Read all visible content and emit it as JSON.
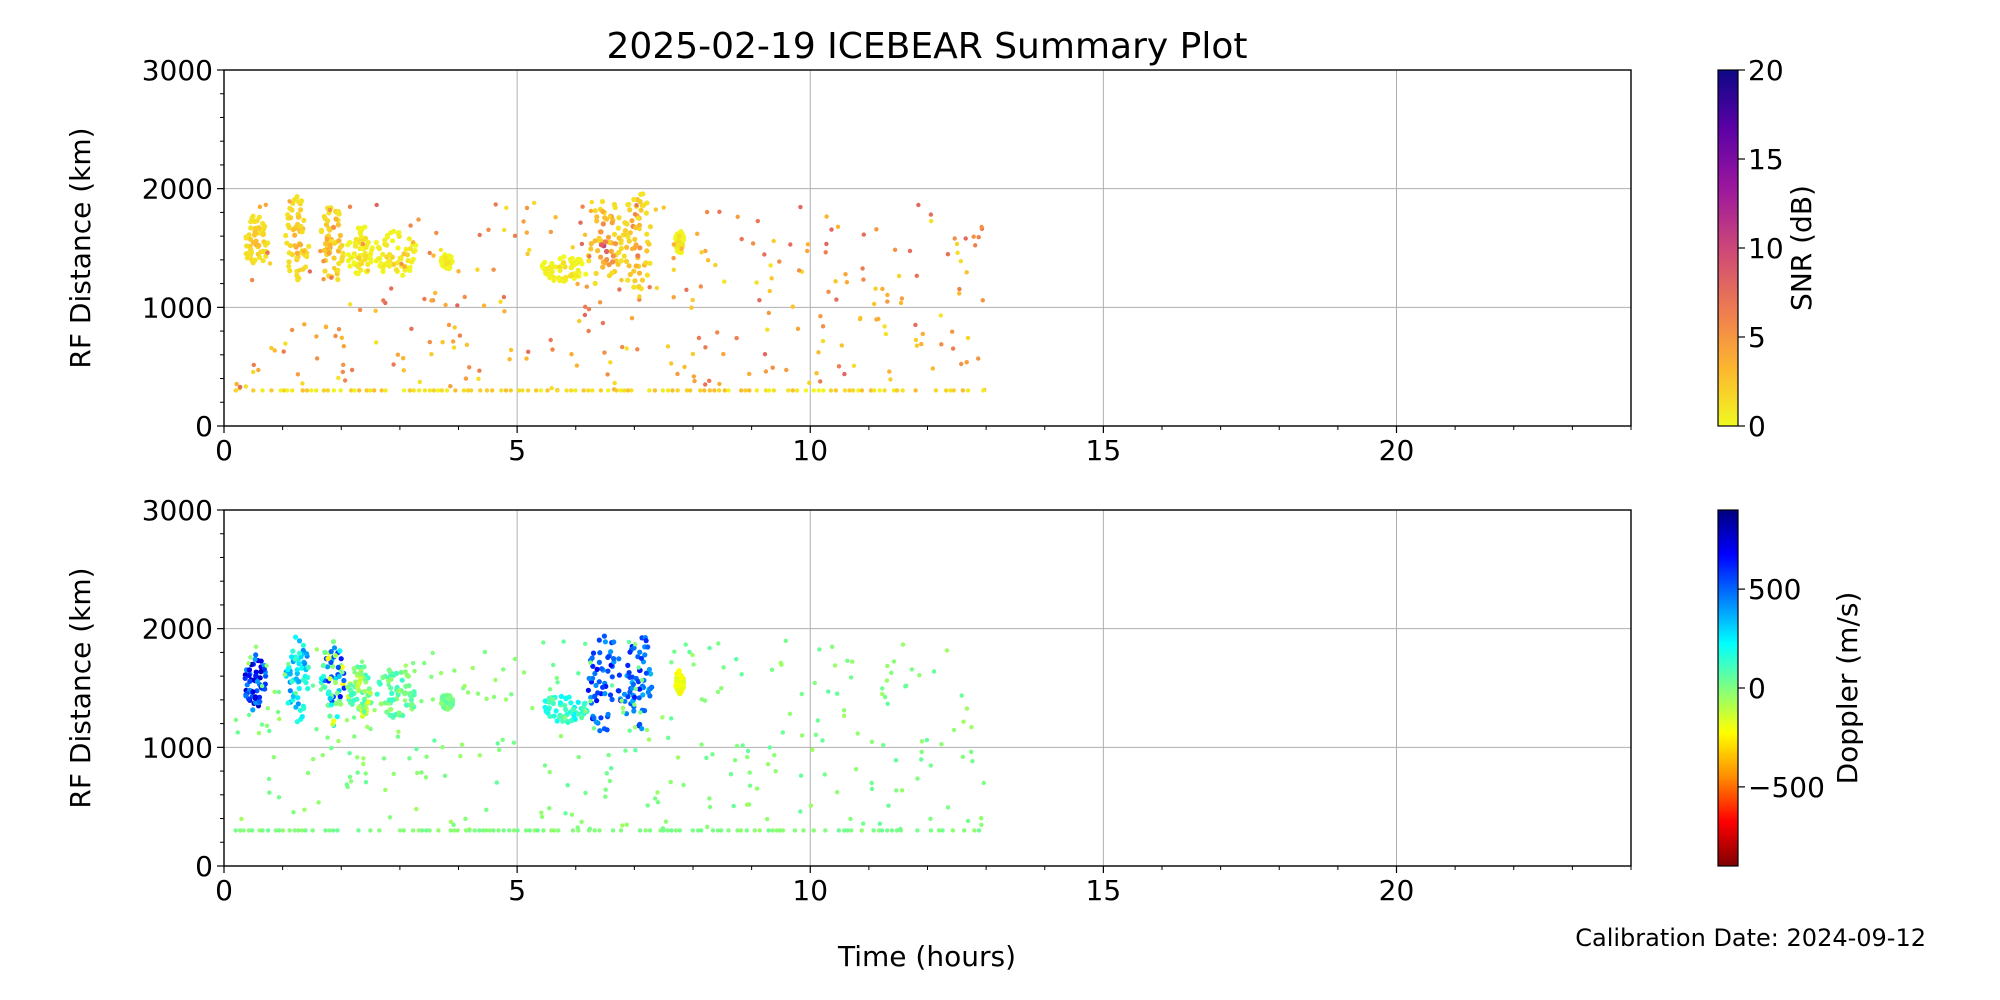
{
  "figure": {
    "title": "2025-02-19 ICEBEAR Summary Plot",
    "xlabel": "Time (hours)",
    "footer": "Calibration Date: 2024-09-12"
  },
  "chart_data": [
    {
      "type": "scatter",
      "panel": "snr",
      "xlabel": "",
      "ylabel": "RF Distance (km)",
      "xlim": [
        0,
        24
      ],
      "ylim": [
        0,
        3000
      ],
      "xticks": [
        "0",
        "5",
        "10",
        "15",
        "20"
      ],
      "yticks": [
        "0",
        "1000",
        "2000",
        "3000"
      ],
      "grid": true,
      "colorbar": {
        "label": "SNR (dB)",
        "range": [
          0,
          20
        ],
        "ticks": [
          "0",
          "5",
          "10",
          "15",
          "20"
        ],
        "colormap": "plasma_r",
        "colors": [
          "#f0f921",
          "#fdb42f",
          "#ed7953",
          "#cc4778",
          "#9c179e",
          "#5c01a6",
          "#0d0887"
        ]
      },
      "clusters": [
        {
          "x": [
            0.35,
            0.75
          ],
          "y": [
            1300,
            1780
          ],
          "value": [
            1,
            4
          ]
        },
        {
          "x": [
            1.05,
            1.45
          ],
          "y": [
            1200,
            1950
          ],
          "value": [
            1,
            5
          ]
        },
        {
          "x": [
            1.65,
            2.05
          ],
          "y": [
            1180,
            1900
          ],
          "value": [
            1,
            8
          ]
        },
        {
          "x": [
            2.1,
            2.55
          ],
          "y": [
            1250,
            1700
          ],
          "value": [
            0,
            3
          ]
        },
        {
          "x": [
            2.55,
            3.3
          ],
          "y": [
            1250,
            1660
          ],
          "value": [
            0,
            4
          ]
        },
        {
          "x": [
            3.7,
            3.9
          ],
          "y": [
            1320,
            1450
          ],
          "value": [
            0,
            2
          ]
        },
        {
          "x": [
            5.4,
            6.2
          ],
          "y": [
            1200,
            1440
          ],
          "value": [
            0,
            3
          ]
        },
        {
          "x": [
            6.2,
            6.8
          ],
          "y": [
            1120,
            1950
          ],
          "value": [
            1,
            12
          ]
        },
        {
          "x": [
            6.8,
            7.3
          ],
          "y": [
            1120,
            2000
          ],
          "value": [
            1,
            9
          ]
        },
        {
          "x": [
            7.7,
            7.85
          ],
          "y": [
            1450,
            1650
          ],
          "value": [
            0,
            3
          ]
        }
      ],
      "scatter": {
        "x": [
          0.2,
          13.0
        ],
        "y": [
          300,
          1900
        ],
        "value": [
          1,
          8
        ],
        "count": 300
      },
      "baseline": {
        "x": [
          0.2,
          13.0
        ],
        "y": 300,
        "value": [
          0,
          3
        ]
      }
    },
    {
      "type": "scatter",
      "panel": "doppler",
      "xlabel": "Time (hours)",
      "ylabel": "RF Distance (km)",
      "xlim": [
        0,
        24
      ],
      "ylim": [
        0,
        3000
      ],
      "xticks": [
        "0",
        "5",
        "10",
        "15",
        "20"
      ],
      "yticks": [
        "0",
        "1000",
        "2000",
        "3000"
      ],
      "grid": true,
      "colorbar": {
        "label": "Doppler (m/s)",
        "range": [
          -900,
          900
        ],
        "ticks": [
          "−500",
          "0",
          "500"
        ],
        "tick_values": [
          -500,
          0,
          500
        ],
        "colormap": "jet_r",
        "colors": [
          "#800000",
          "#ff0000",
          "#ff8c00",
          "#ffff00",
          "#80ff80",
          "#00ffff",
          "#0080ff",
          "#0000ff",
          "#000080"
        ]
      },
      "clusters": [
        {
          "x": [
            0.35,
            0.75
          ],
          "y": [
            1300,
            1780
          ],
          "value": [
            350,
            800
          ]
        },
        {
          "x": [
            1.05,
            1.45
          ],
          "y": [
            1200,
            1950
          ],
          "value": [
            100,
            450
          ]
        },
        {
          "x": [
            1.65,
            2.05
          ],
          "y": [
            1180,
            1900
          ],
          "value": [
            -250,
            650
          ]
        },
        {
          "x": [
            2.1,
            2.55
          ],
          "y": [
            1250,
            1700
          ],
          "value": [
            -200,
            150
          ]
        },
        {
          "x": [
            2.55,
            3.3
          ],
          "y": [
            1250,
            1660
          ],
          "value": [
            -50,
            150
          ]
        },
        {
          "x": [
            3.7,
            3.9
          ],
          "y": [
            1320,
            1450
          ],
          "value": [
            -50,
            100
          ]
        },
        {
          "x": [
            5.4,
            6.2
          ],
          "y": [
            1200,
            1440
          ],
          "value": [
            50,
            250
          ]
        },
        {
          "x": [
            6.2,
            6.8
          ],
          "y": [
            1120,
            1950
          ],
          "value": [
            400,
            700
          ]
        },
        {
          "x": [
            6.8,
            7.3
          ],
          "y": [
            1120,
            2000
          ],
          "value": [
            350,
            650
          ]
        },
        {
          "x": [
            7.7,
            7.85
          ],
          "y": [
            1450,
            1650
          ],
          "value": [
            -250,
            -150
          ]
        }
      ],
      "scatter": {
        "x": [
          0.2,
          13.0
        ],
        "y": [
          300,
          1900
        ],
        "value": [
          -60,
          60
        ],
        "count": 300
      },
      "baseline": {
        "x": [
          0.2,
          13.0
        ],
        "y": 300,
        "value": [
          -40,
          40
        ]
      }
    }
  ]
}
